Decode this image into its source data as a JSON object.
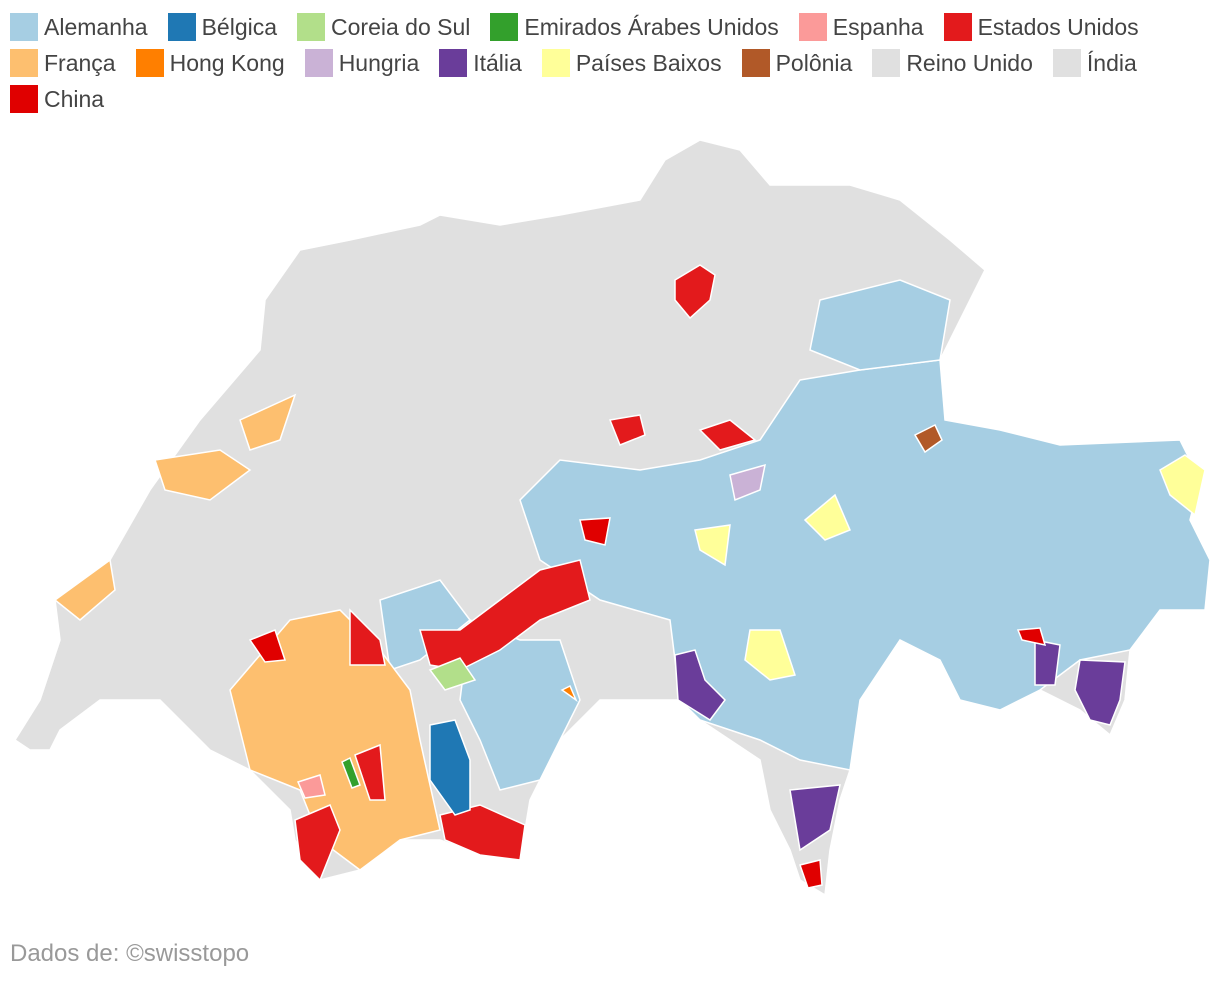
{
  "legend": [
    {
      "name": "Alemanha",
      "color": "#a6cee3"
    },
    {
      "name": "Bélgica",
      "color": "#1f78b4"
    },
    {
      "name": "Coreia do Sul",
      "color": "#b2df8a"
    },
    {
      "name": "Emirados Árabes Unidos",
      "color": "#33a02c"
    },
    {
      "name": "Espanha",
      "color": "#fb9a99"
    },
    {
      "name": "Estados Unidos",
      "color": "#e31a1c"
    },
    {
      "name": "França",
      "color": "#fdbf6f"
    },
    {
      "name": "Hong Kong",
      "color": "#ff7f00"
    },
    {
      "name": "Hungria",
      "color": "#cab2d6"
    },
    {
      "name": "Itália",
      "color": "#6a3d9a"
    },
    {
      "name": "Países Baixos",
      "color": "#ffff99"
    },
    {
      "name": "Polônia",
      "color": "#b15928"
    },
    {
      "name": "Reino Unido",
      "color": "#e0e0e0"
    },
    {
      "name": "Índia",
      "color": "#e0e0e0"
    },
    {
      "name": "China",
      "color": "#e00000"
    }
  ],
  "source": "Dados de: ©swisstopo"
}
